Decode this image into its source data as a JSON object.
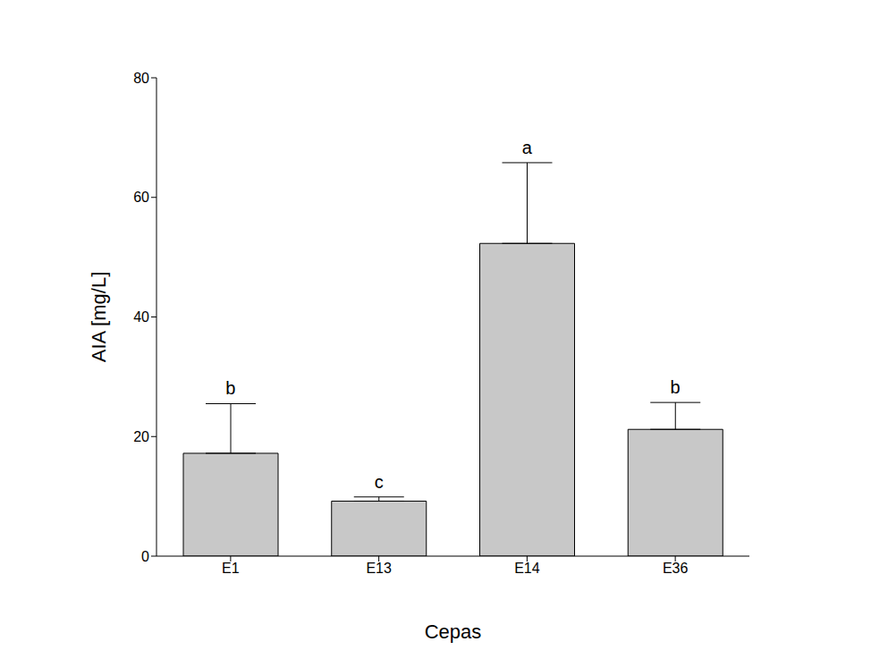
{
  "chart_data": {
    "type": "bar",
    "x_label": "Cepas",
    "y_label": "AIA [mg/L]",
    "categories": [
      "E1",
      "E13",
      "E14",
      "E36"
    ],
    "values": [
      17.2,
      9.2,
      52.3,
      21.2
    ],
    "errors": [
      8.3,
      0.7,
      13.5,
      4.5
    ],
    "annotations": [
      "b",
      "c",
      "a",
      "b"
    ],
    "color": "#c8c8c8",
    "ylim": [
      0,
      80
    ],
    "yticks": [
      0,
      20,
      40,
      60,
      80
    ],
    "grid": false
  }
}
